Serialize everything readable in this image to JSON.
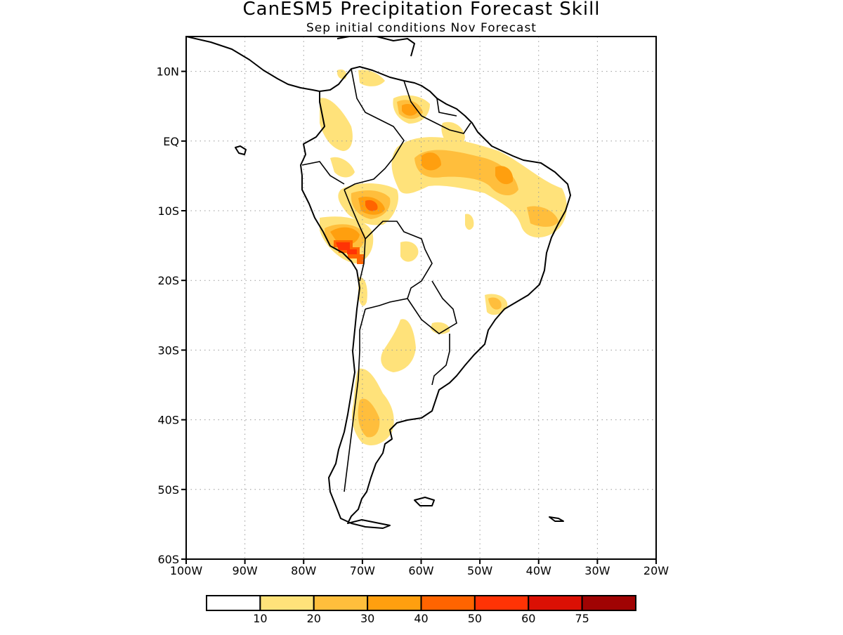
{
  "map": {
    "title": "CanESM5 Precipitation Forecast Skill",
    "subtitle": "Sep initial conditions  Nov Forecast",
    "lon_range": [
      -100,
      -20
    ],
    "lat_range": [
      -60,
      15
    ],
    "lat_ticks": [
      {
        "value": 10,
        "label": "10N"
      },
      {
        "value": 0,
        "label": "EQ"
      },
      {
        "value": -10,
        "label": "10S"
      },
      {
        "value": -20,
        "label": "20S"
      },
      {
        "value": -30,
        "label": "30S"
      },
      {
        "value": -40,
        "label": "40S"
      },
      {
        "value": -50,
        "label": "50S"
      },
      {
        "value": -60,
        "label": "60S"
      }
    ],
    "lon_ticks": [
      {
        "value": -100,
        "label": "100W"
      },
      {
        "value": -90,
        "label": "90W"
      },
      {
        "value": -80,
        "label": "80W"
      },
      {
        "value": -70,
        "label": "70W"
      },
      {
        "value": -60,
        "label": "60W"
      },
      {
        "value": -50,
        "label": "50W"
      },
      {
        "value": -40,
        "label": "40W"
      },
      {
        "value": -30,
        "label": "30W"
      },
      {
        "value": -20,
        "label": "20W"
      }
    ]
  },
  "colorbar": {
    "colors": [
      "#ffffff",
      "#ffe27a",
      "#ffbe3c",
      "#ff9f0f",
      "#ff6400",
      "#ff3305",
      "#db1004",
      "#a00303"
    ],
    "labels": [
      "10",
      "20",
      "30",
      "40",
      "50",
      "60",
      "75"
    ]
  }
}
